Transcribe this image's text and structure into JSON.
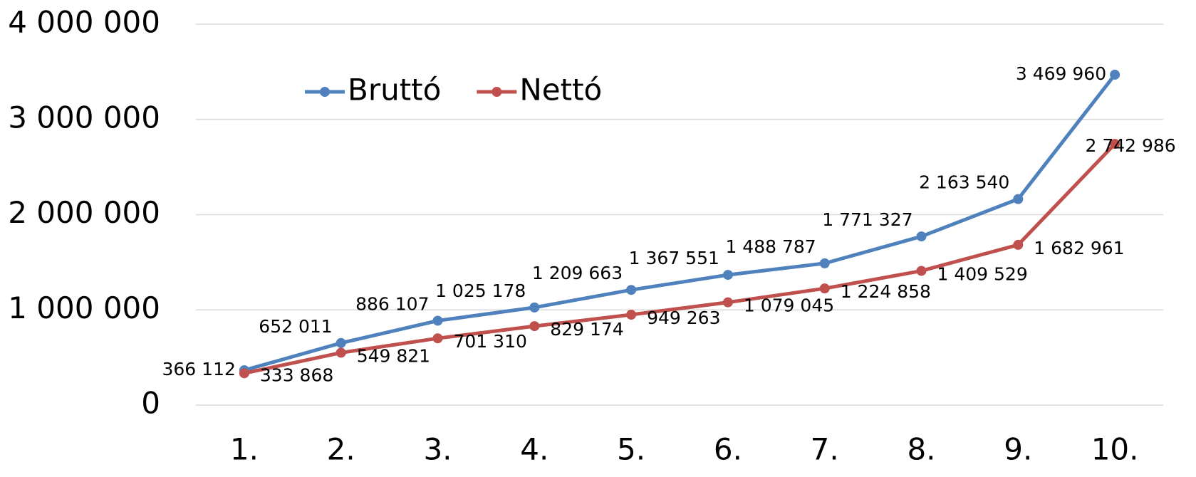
{
  "chart_data": {
    "type": "line",
    "categories": [
      "1.",
      "2.",
      "3.",
      "4.",
      "5.",
      "6.",
      "7.",
      "8.",
      "9.",
      "10."
    ],
    "series": [
      {
        "name": "Bruttó",
        "color": "#4f81bd",
        "values": [
          366112,
          652011,
          886107,
          1025178,
          1209663,
          1367551,
          1488787,
          1771327,
          2163540,
          3469960
        ],
        "value_labels": [
          "366 112",
          "652 011",
          "886 107",
          "1 025 178",
          "1 209 663",
          "1 367 551",
          "1 488 787",
          "1 771 327",
          "2 163 540",
          "3 469 960"
        ]
      },
      {
        "name": "Nettó",
        "color": "#c0504d",
        "values": [
          333868,
          549821,
          701310,
          829174,
          949263,
          1079045,
          1224858,
          1409529,
          1682961,
          2742986
        ],
        "value_labels": [
          "333 868",
          "549 821",
          "701 310",
          "829 174",
          "949 263",
          "1 079 045",
          "1 224 858",
          "1 409 529",
          "1 682 961",
          "2 742 986"
        ]
      }
    ],
    "ylim": [
      0,
      4000000
    ],
    "yticks": [
      0,
      {
        "value": 1000000,
        "label": "1 000 000"
      },
      {
        "value": 2000000,
        "label": "2 000 000"
      },
      {
        "value": 3000000,
        "label": "3 000 000"
      },
      {
        "value": 4000000,
        "label": "4 000 000"
      }
    ],
    "grid": true,
    "legend": "top-left"
  }
}
